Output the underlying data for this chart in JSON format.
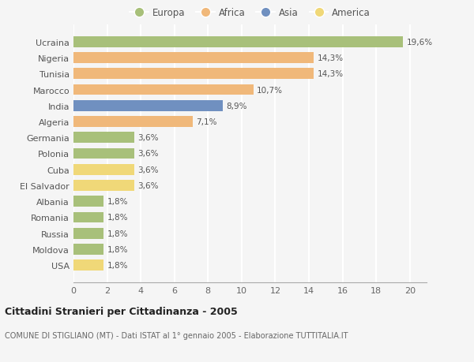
{
  "countries": [
    "Ucraina",
    "Nigeria",
    "Tunisia",
    "Marocco",
    "India",
    "Algeria",
    "Germania",
    "Polonia",
    "Cuba",
    "El Salvador",
    "Albania",
    "Romania",
    "Russia",
    "Moldova",
    "USA"
  ],
  "values": [
    19.6,
    14.3,
    14.3,
    10.7,
    8.9,
    7.1,
    3.6,
    3.6,
    3.6,
    3.6,
    1.8,
    1.8,
    1.8,
    1.8,
    1.8
  ],
  "labels": [
    "19,6%",
    "14,3%",
    "14,3%",
    "10,7%",
    "8,9%",
    "7,1%",
    "3,6%",
    "3,6%",
    "3,6%",
    "3,6%",
    "1,8%",
    "1,8%",
    "1,8%",
    "1,8%",
    "1,8%"
  ],
  "continents": [
    "Europa",
    "Africa",
    "Africa",
    "Africa",
    "Asia",
    "Africa",
    "Europa",
    "Europa",
    "America",
    "America",
    "Europa",
    "Europa",
    "Europa",
    "Europa",
    "America"
  ],
  "continent_colors": {
    "Europa": "#a8c07a",
    "Africa": "#f0b87a",
    "Asia": "#7090c0",
    "America": "#f0d878"
  },
  "legend_order": [
    "Europa",
    "Africa",
    "Asia",
    "America"
  ],
  "title": "Cittadini Stranieri per Cittadinanza - 2005",
  "subtitle": "COMUNE DI STIGLIANO (MT) - Dati ISTAT al 1° gennaio 2005 - Elaborazione TUTTITALIA.IT",
  "xlim": [
    0,
    21
  ],
  "xticks": [
    0,
    2,
    4,
    6,
    8,
    10,
    12,
    14,
    16,
    18,
    20
  ],
  "bg_color": "#f5f5f5",
  "grid_color": "#ffffff",
  "bar_height": 0.68
}
